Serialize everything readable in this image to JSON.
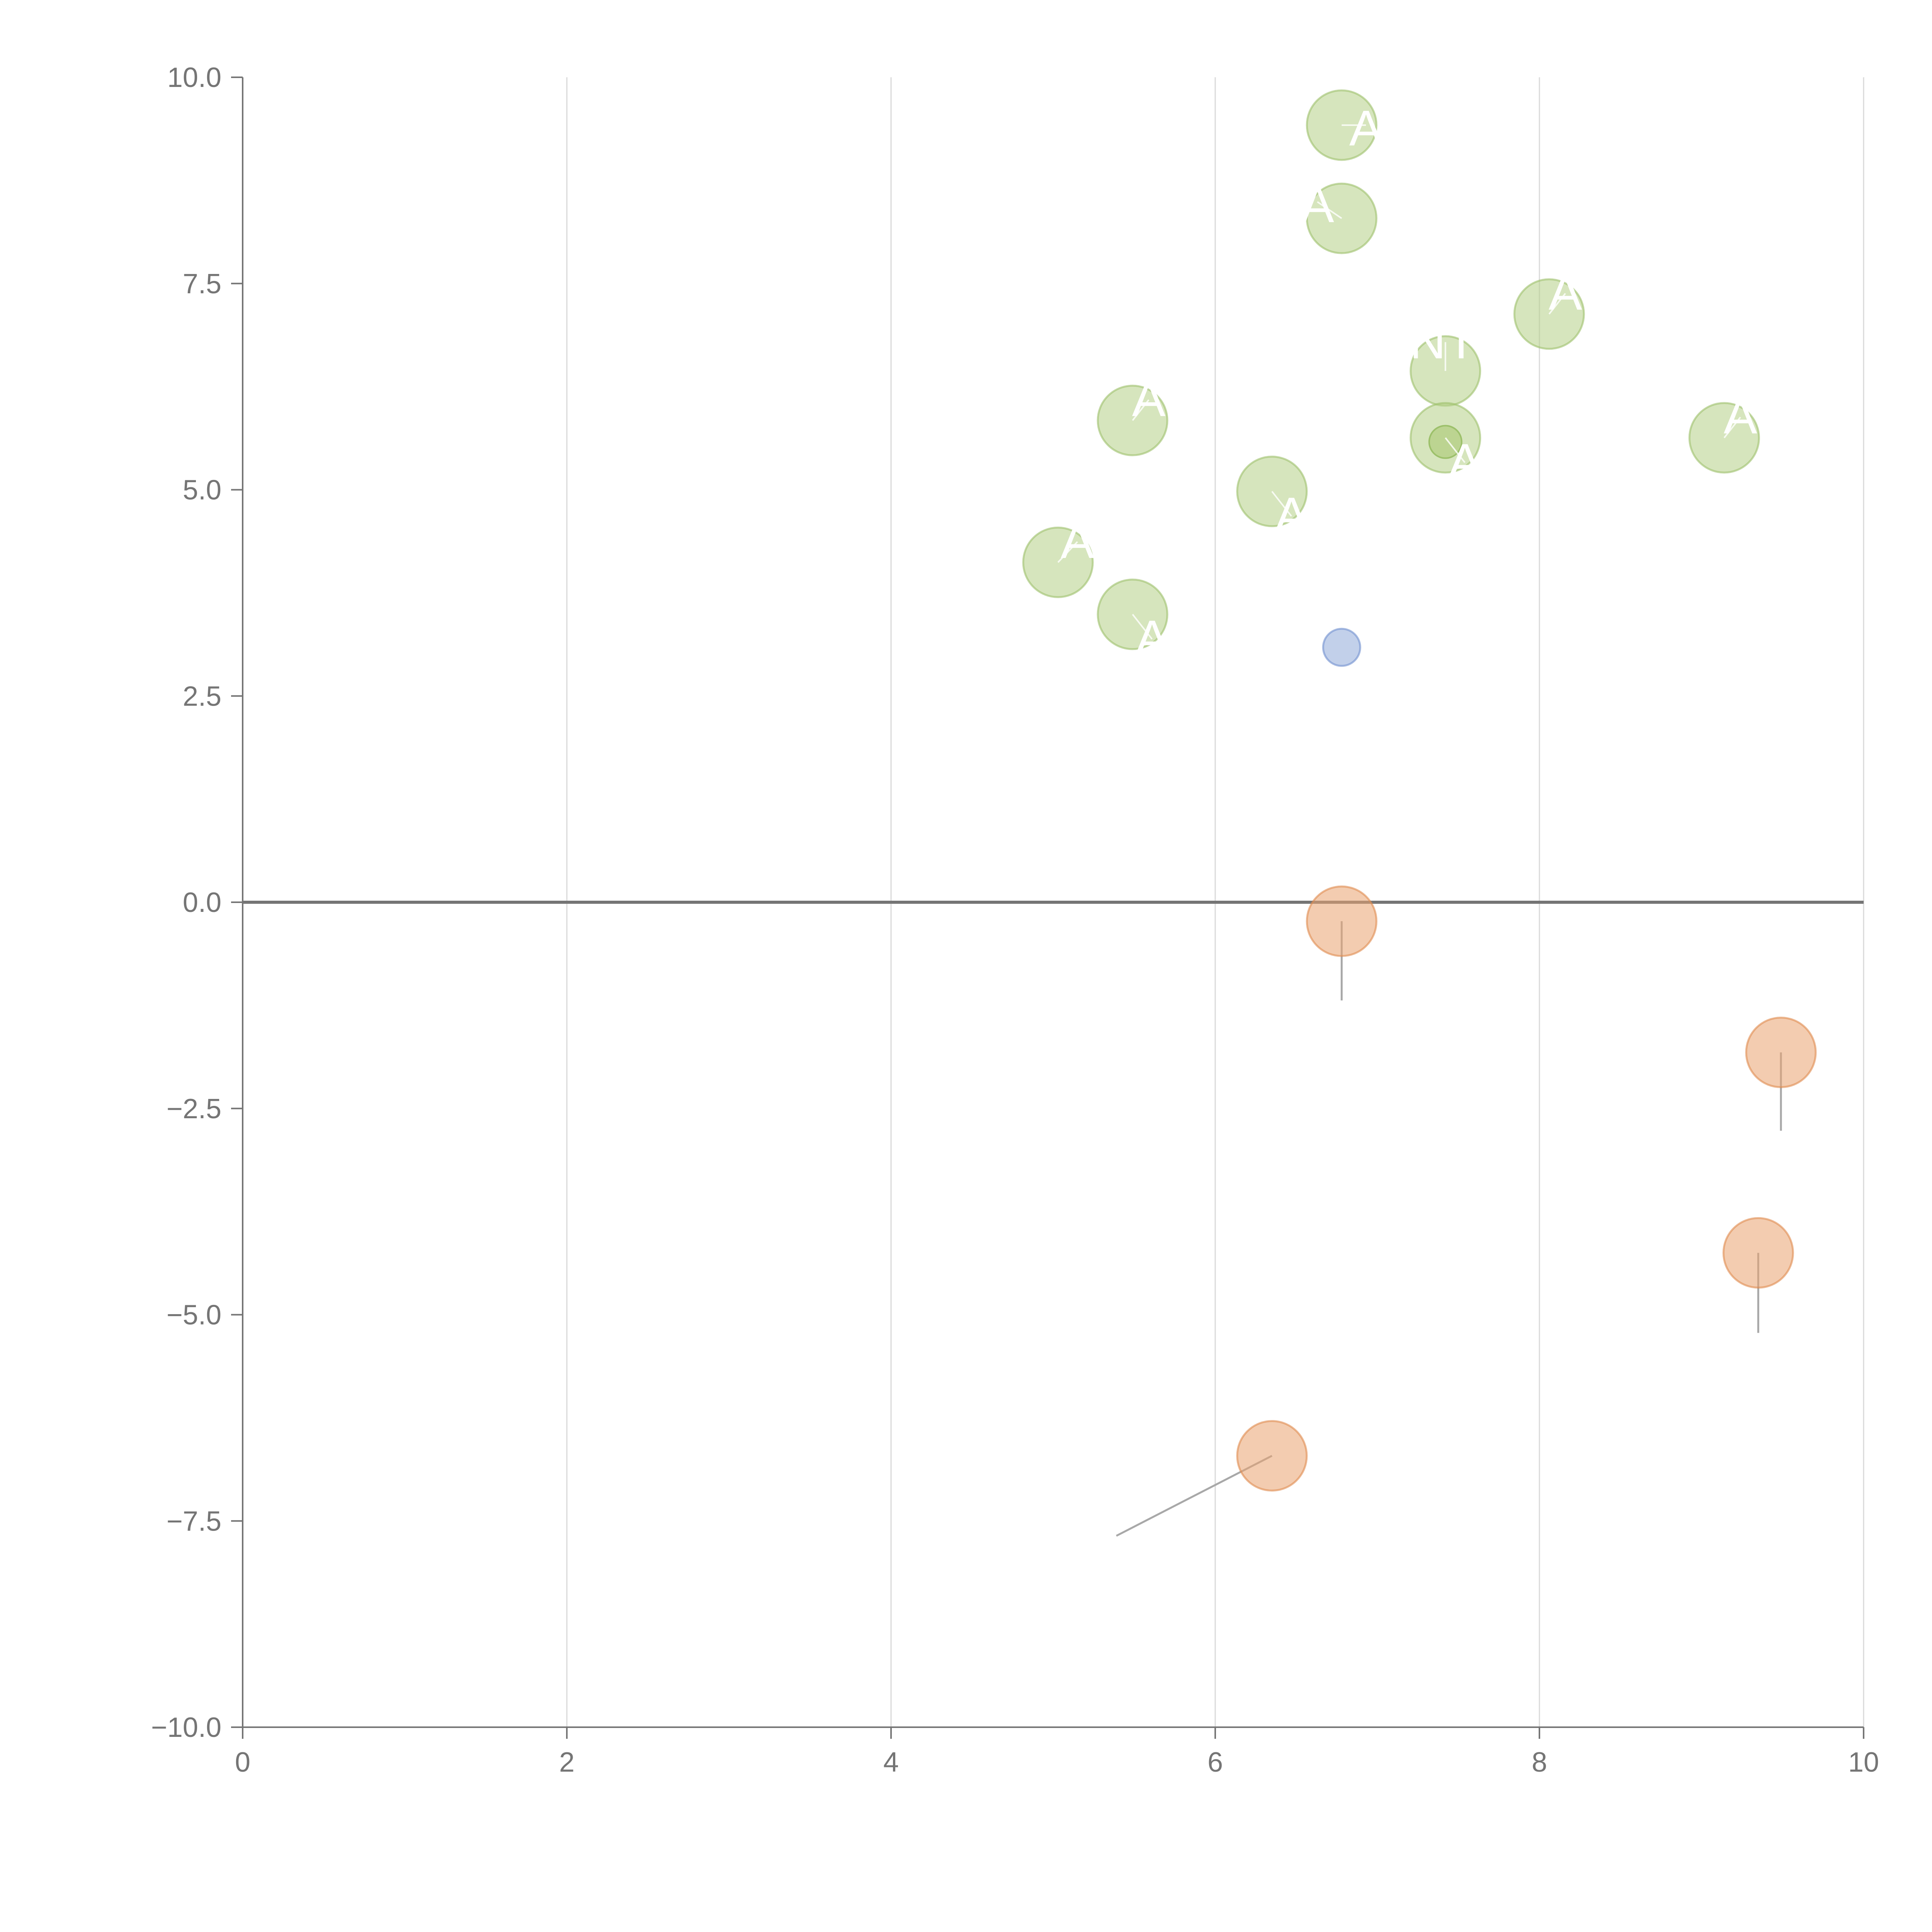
{
  "chart_data": {
    "type": "scatter",
    "title": "",
    "xlabel": "",
    "ylabel": "",
    "xlim": [
      0,
      10
    ],
    "ylim": [
      -10,
      10
    ],
    "grid": "vertical",
    "x_ticks": [
      "0",
      "2",
      "4",
      "6",
      "8",
      "10"
    ],
    "x_tick_values": [
      0,
      2,
      4,
      6,
      8,
      10
    ],
    "y_ticks": [
      "10.0",
      "7.5",
      "5.0",
      "2.5",
      "0.0",
      "−2.5",
      "−5.0",
      "−7.5",
      "−10.0"
    ],
    "y_tick_values": [
      10,
      7.5,
      5,
      2.5,
      0,
      -2.5,
      -5,
      -7.5,
      -10
    ],
    "zero_line": 0,
    "colors": {
      "green": "#b5cf86",
      "green_stroke": "#9cc06a",
      "orange": "#e9a36f",
      "orange_stroke": "#e08a4f",
      "blue": "#8fa9d8",
      "blue_stroke": "#6f8fcf",
      "leader": "#a8a8a8",
      "axis": "#757575"
    },
    "series": [
      {
        "name": "green",
        "color": "#b5cf86",
        "points": [
          {
            "x": 6.78,
            "y": 9.42,
            "label": "A",
            "label_dx": 0.15,
            "label_dy": 0.0,
            "label_size": "large"
          },
          {
            "x": 6.78,
            "y": 8.29,
            "label": "A",
            "label_dx": -0.15,
            "label_dy": 0.2,
            "label_size": "large"
          },
          {
            "x": 8.06,
            "y": 7.13,
            "label": "A",
            "label_dx": 0.1,
            "label_dy": 0.25
          },
          {
            "x": 7.42,
            "y": 6.44,
            "label": "ANTO",
            "label_dx": 0.0,
            "label_dy": 0.35
          },
          {
            "x": 5.49,
            "y": 5.84,
            "label": "A",
            "label_dx": 0.1,
            "label_dy": 0.25
          },
          {
            "x": 7.42,
            "y": 5.63,
            "label": "A",
            "label_dx": 0.12,
            "label_dy": -0.3
          },
          {
            "x": 9.14,
            "y": 5.63,
            "label": "A",
            "label_dx": 0.1,
            "label_dy": 0.25
          },
          {
            "x": 6.35,
            "y": 4.98,
            "label": "A",
            "label_dx": 0.12,
            "label_dy": -0.3
          },
          {
            "x": 5.03,
            "y": 4.12,
            "label": "A",
            "label_dx": 0.12,
            "label_dy": 0.25
          },
          {
            "x": 5.49,
            "y": 3.49,
            "label": "A",
            "label_dx": 0.12,
            "label_dy": -0.3
          }
        ]
      },
      {
        "name": "orange",
        "color": "#e9a36f",
        "points": [
          {
            "x": 6.78,
            "y": -0.23,
            "leader_to": [
              6.78,
              -1.19
            ]
          },
          {
            "x": 9.49,
            "y": -1.82,
            "leader_to": [
              9.49,
              -2.77
            ]
          },
          {
            "x": 9.35,
            "y": -4.25,
            "leader_to": [
              9.35,
              -5.22
            ]
          },
          {
            "x": 6.35,
            "y": -6.71,
            "leader_to": [
              5.39,
              -7.68
            ]
          }
        ]
      },
      {
        "name": "blue",
        "color": "#8fa9d8",
        "points": [
          {
            "x": 6.78,
            "y": 3.09
          }
        ]
      }
    ],
    "annotations": [
      {
        "x": 7.42,
        "y": 5.58,
        "kind": "inner-dot"
      }
    ]
  }
}
